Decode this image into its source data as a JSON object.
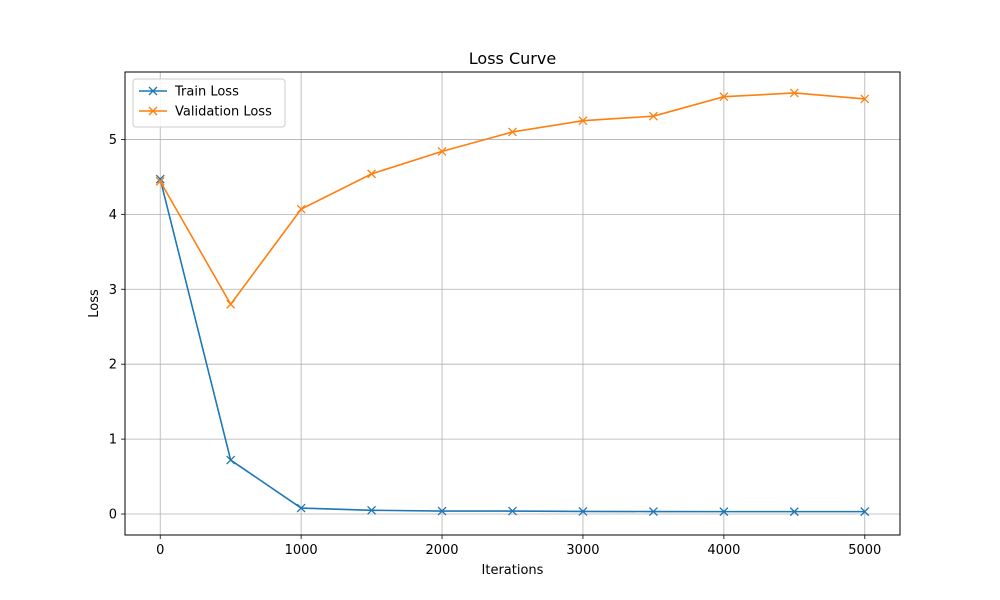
{
  "chart_data": {
    "type": "line",
    "title": "Loss Curve",
    "xlabel": "Iterations",
    "ylabel": "Loss",
    "xlim": [
      -250,
      5250
    ],
    "ylim": [
      -0.28,
      5.9
    ],
    "xticks": [
      0,
      1000,
      2000,
      3000,
      4000,
      5000
    ],
    "yticks": [
      0,
      1,
      2,
      3,
      4,
      5
    ],
    "grid": true,
    "legend_position": "top-left",
    "x": [
      0,
      500,
      1000,
      1500,
      2000,
      2500,
      3000,
      3500,
      4000,
      4500,
      5000
    ],
    "series": [
      {
        "name": "Train Loss",
        "color": "#1f77b4",
        "marker": "x",
        "values": [
          4.47,
          0.72,
          0.08,
          0.05,
          0.04,
          0.04,
          0.035,
          0.033,
          0.032,
          0.032,
          0.032
        ]
      },
      {
        "name": "Validation Loss",
        "color": "#ff7f0e",
        "marker": "x",
        "values": [
          4.44,
          2.8,
          4.07,
          4.54,
          4.84,
          5.1,
          5.25,
          5.31,
          5.57,
          5.62,
          5.54
        ]
      }
    ]
  }
}
